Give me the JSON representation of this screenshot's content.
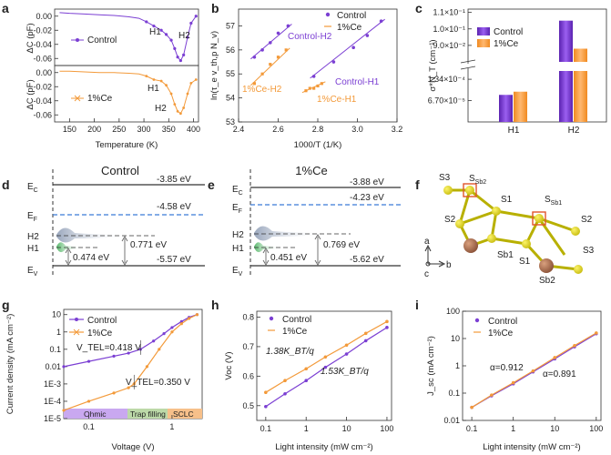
{
  "colors": {
    "control": "#7b3fd3",
    "ce": "#f39a3a",
    "ceLight": "#f7c78a",
    "ctrlLight": "#b07cf0",
    "bandGray": "#7b8aa0",
    "ef": "#3b7bd6",
    "green": "#57b86a",
    "ohmic": "#c9a8f0",
    "trap": "#bcd9a8",
    "sclc": "#f7c08a"
  },
  "panel_labels": {
    "a": "a",
    "b": "b",
    "c": "c",
    "d": "d",
    "e": "e",
    "f": "f",
    "g": "g",
    "h": "h",
    "i": "i"
  },
  "chart_data": [
    {
      "id": "a",
      "type": "line",
      "ylabel_top": "ΔC (pF)",
      "ylabel_bottom": "ΔC (pF)",
      "xlabel": "Temperature (K)",
      "xticks": [
        "150",
        "200",
        "250",
        "300",
        "350",
        "400"
      ],
      "yticks_top": [
        "0.00",
        "-0.02",
        "-0.04",
        "-0.06"
      ],
      "yticks_bottom": [
        "0.00",
        "-0.02",
        "-0.04",
        "-0.06"
      ],
      "series": [
        {
          "name": "Control",
          "x": [
            130,
            150,
            180,
            210,
            240,
            270,
            290,
            305,
            320,
            335,
            345,
            355,
            362,
            368,
            374,
            380,
            388,
            395,
            405
          ],
          "y": [
            0.005,
            0.004,
            0.003,
            0.002,
            0.001,
            -0.001,
            -0.003,
            -0.008,
            -0.014,
            -0.02,
            -0.026,
            -0.034,
            -0.046,
            -0.058,
            -0.063,
            -0.055,
            -0.03,
            -0.01,
            0.0
          ]
        },
        {
          "name": "1%Ce",
          "x": [
            130,
            150,
            180,
            210,
            240,
            270,
            290,
            305,
            320,
            335,
            345,
            355,
            362,
            368,
            374,
            380,
            388,
            395,
            405
          ],
          "y": [
            0.002,
            0.002,
            0.001,
            0.0,
            0.0,
            -0.001,
            -0.002,
            -0.005,
            -0.01,
            -0.012,
            -0.018,
            -0.03,
            -0.045,
            -0.055,
            -0.058,
            -0.05,
            -0.03,
            -0.015,
            -0.01
          ]
        }
      ],
      "annotations": [
        "H1",
        "H2",
        "H1",
        "H2"
      ]
    },
    {
      "id": "b",
      "type": "scatter",
      "ylabel": "ln(τ_e v_th,p N_v)",
      "xlabel": "1000/T (1/K)",
      "xticks": [
        "2.4",
        "2.6",
        "2.8",
        "3.0",
        "3.2"
      ],
      "yticks": [
        "53",
        "54",
        "55",
        "56",
        "57"
      ],
      "legend": [
        "Control",
        "1%Ce"
      ],
      "series": [
        {
          "name": "Control",
          "x": [
            2.48,
            2.52,
            2.56,
            2.6,
            2.65
          ],
          "y": [
            55.7,
            56.0,
            56.3,
            56.7,
            57.0
          ]
        },
        {
          "name": "Control",
          "x": [
            2.78,
            2.88,
            2.98,
            3.05,
            3.12
          ],
          "y": [
            54.9,
            55.5,
            56.1,
            56.6,
            57.2
          ]
        },
        {
          "name": "1%Ce",
          "x": [
            2.48,
            2.52,
            2.56,
            2.6,
            2.64
          ],
          "y": [
            54.6,
            55.0,
            55.4,
            55.7,
            56.0
          ]
        },
        {
          "name": "1%Ce",
          "x": [
            2.74,
            2.76,
            2.78,
            2.8,
            2.82
          ],
          "y": [
            54.3,
            54.4,
            54.4,
            54.5,
            54.6
          ]
        }
      ],
      "annotations": [
        "Control-H2",
        "Control-H1",
        "1%Ce-H2",
        "1%Ce-H1"
      ]
    },
    {
      "id": "c",
      "type": "bar",
      "ylabel": "σ*N_T (cm⁻¹)",
      "categories": [
        "H1",
        "H2"
      ],
      "yticks_low": [
        "6.70×10⁻⁵",
        "1.34×10⁻⁴"
      ],
      "yticks_high": [
        "9.0×10⁻²",
        "1.0×10⁻¹",
        "1.1×10⁻¹"
      ],
      "series": [
        {
          "name": "Control",
          "values": [
            8.5e-05,
            0.105
          ]
        },
        {
          "name": "1%Ce",
          "values": [
            9.5e-05,
            0.088
          ]
        }
      ]
    },
    {
      "id": "g",
      "type": "line",
      "ylabel": "Current density (mA cm⁻²)",
      "xlabel": "Voltage (V)",
      "yticks": [
        "1E-5",
        "1E-4",
        "1E-3",
        "0.01",
        "0.1",
        "1",
        "10"
      ],
      "xticks": [
        "0.1",
        "1"
      ],
      "regions": [
        "Ohmic",
        "Trap filling",
        "SCLC"
      ],
      "annotations": [
        "V_TEL=0.418 V",
        "V_TEL=0.350 V"
      ],
      "series": [
        {
          "name": "Control",
          "x": [
            0.05,
            0.1,
            0.2,
            0.3,
            0.418,
            0.6,
            0.8,
            1.0,
            1.3,
            1.6,
            2.0
          ],
          "y": [
            0.01,
            0.02,
            0.04,
            0.06,
            0.1,
            0.3,
            0.8,
            1.8,
            4,
            7,
            10
          ]
        },
        {
          "name": "1%Ce",
          "x": [
            0.05,
            0.1,
            0.2,
            0.3,
            0.35,
            0.5,
            0.7,
            1.0,
            1.3,
            1.6,
            2.0
          ],
          "y": [
            3e-05,
            0.0001,
            0.0003,
            0.0006,
            0.001,
            0.01,
            0.1,
            1,
            3,
            6,
            10
          ]
        }
      ]
    },
    {
      "id": "h",
      "type": "scatter",
      "ylabel": "Voc (V)",
      "xlabel": "Light intensity (mW cm⁻²)",
      "xticks": [
        "0.1",
        "1",
        "10",
        "100"
      ],
      "yticks": [
        "0.5",
        "0.6",
        "0.7",
        "0.8"
      ],
      "annotations": [
        "1.38K_BT/q",
        "1.53K_BT/q"
      ],
      "series": [
        {
          "name": "Control",
          "x": [
            0.1,
            0.3,
            1,
            3,
            10,
            30,
            100
          ],
          "y": [
            0.497,
            0.54,
            0.585,
            0.63,
            0.675,
            0.72,
            0.765
          ]
        },
        {
          "name": "1%Ce",
          "x": [
            0.1,
            0.3,
            1,
            3,
            10,
            30,
            100
          ],
          "y": [
            0.545,
            0.585,
            0.625,
            0.665,
            0.705,
            0.745,
            0.785
          ]
        }
      ]
    },
    {
      "id": "i",
      "type": "scatter",
      "ylabel": "J_sc (mA cm⁻²)",
      "xlabel": "Light intensity (mW cm⁻²)",
      "xticks": [
        "0.1",
        "1",
        "10",
        "100"
      ],
      "yticks": [
        "0.01",
        "0.1",
        "1",
        "10",
        "100"
      ],
      "annotations": [
        "α=0.912",
        "α=0.891"
      ],
      "series": [
        {
          "name": "Control",
          "x": [
            0.1,
            0.3,
            1,
            3,
            10,
            30,
            100
          ],
          "y": [
            0.03,
            0.08,
            0.22,
            0.6,
            1.8,
            5,
            15
          ]
        },
        {
          "name": "1%Ce",
          "x": [
            0.1,
            0.3,
            1,
            3,
            10,
            30,
            100
          ],
          "y": [
            0.03,
            0.085,
            0.24,
            0.65,
            2.0,
            5.5,
            16
          ]
        }
      ]
    }
  ],
  "panel_d": {
    "title": "Control",
    "Ec": "E",
    "Ec_sub": "C",
    "Ef": "E",
    "Ef_sub": "F",
    "Ev": "E",
    "Ev_sub": "V",
    "H2": "H2",
    "H1": "H1",
    "ec_val": "-3.85 eV",
    "ef_val": "-4.58 eV",
    "h2_gap": "0.771 eV",
    "h1_gap": "0.474 eV",
    "ev_val": "-5.57 eV"
  },
  "panel_e": {
    "title": "1%Ce",
    "Ec": "E",
    "Ec_sub": "C",
    "Ef": "E",
    "Ef_sub": "F",
    "Ev": "E",
    "Ev_sub": "V",
    "H2": "H2",
    "H1": "H1",
    "ec_val": "-3.88 eV",
    "ef_val": "-4.23 eV",
    "h2_gap": "0.769 eV",
    "h1_gap": "0.451 eV",
    "ev_val": "-5.62 eV"
  },
  "panel_f": {
    "S3a": "S3",
    "Ssb2": "S",
    "Ssb2_sub": "Sb2",
    "S1a": "S1",
    "Ssb1": "S",
    "Ssb1_sub": "Sb1",
    "S2a": "S2",
    "S2b": "S2",
    "Sb1": "Sb1",
    "S1b": "S1",
    "S3b": "S3",
    "Sb2": "Sb2",
    "ax_a": "a",
    "ax_b": "b",
    "ax_c": "c"
  }
}
